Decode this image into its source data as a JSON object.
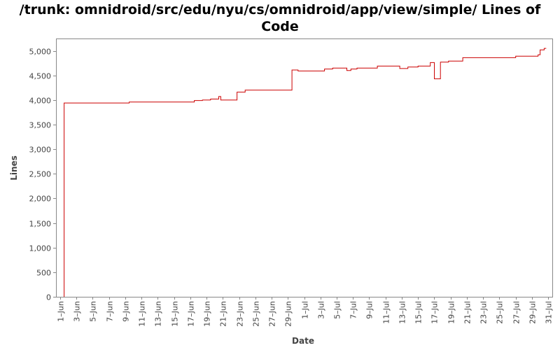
{
  "chart_data": {
    "type": "line",
    "title": "/trunk: omnidroid/src/edu/nyu/cs/omnidroid/app/view/simple/ Lines of Code",
    "xlabel": "Date",
    "ylabel": "Lines",
    "ylim": [
      0,
      5250
    ],
    "xlim": [
      "2008-05-31T12:00",
      "2008-07-31T12:00"
    ],
    "grid": false,
    "legend": "none",
    "line_color": "#cc0000",
    "y_ticks": [
      {
        "value": 0,
        "label": "0"
      },
      {
        "value": 500,
        "label": "500"
      },
      {
        "value": 1000,
        "label": "1,000"
      },
      {
        "value": 1500,
        "label": "1,500"
      },
      {
        "value": 2000,
        "label": "2,000"
      },
      {
        "value": 2500,
        "label": "2,500"
      },
      {
        "value": 3000,
        "label": "3,000"
      },
      {
        "value": 3500,
        "label": "3,500"
      },
      {
        "value": 4000,
        "label": "4,000"
      },
      {
        "value": 4500,
        "label": "4,500"
      },
      {
        "value": 5000,
        "label": "5,000"
      }
    ],
    "x_ticks": [
      {
        "date": "2008-06-01",
        "label": "1–Jun"
      },
      {
        "date": "2008-06-03",
        "label": "3–Jun"
      },
      {
        "date": "2008-06-05",
        "label": "5–Jun"
      },
      {
        "date": "2008-06-07",
        "label": "7–Jun"
      },
      {
        "date": "2008-06-09",
        "label": "9–Jun"
      },
      {
        "date": "2008-06-11",
        "label": "11–Jun"
      },
      {
        "date": "2008-06-13",
        "label": "13–Jun"
      },
      {
        "date": "2008-06-15",
        "label": "15–Jun"
      },
      {
        "date": "2008-06-17",
        "label": "17–Jun"
      },
      {
        "date": "2008-06-19",
        "label": "19–Jun"
      },
      {
        "date": "2008-06-21",
        "label": "21–Jun"
      },
      {
        "date": "2008-06-23",
        "label": "23–Jun"
      },
      {
        "date": "2008-06-25",
        "label": "25–Jun"
      },
      {
        "date": "2008-06-27",
        "label": "27–Jun"
      },
      {
        "date": "2008-06-29",
        "label": "29–Jun"
      },
      {
        "date": "2008-07-01",
        "label": "1–Jul"
      },
      {
        "date": "2008-07-03",
        "label": "3–Jul"
      },
      {
        "date": "2008-07-05",
        "label": "5–Jul"
      },
      {
        "date": "2008-07-07",
        "label": "7–Jul"
      },
      {
        "date": "2008-07-09",
        "label": "9–Jul"
      },
      {
        "date": "2008-07-11",
        "label": "11–Jul"
      },
      {
        "date": "2008-07-13",
        "label": "13–Jul"
      },
      {
        "date": "2008-07-15",
        "label": "15–Jul"
      },
      {
        "date": "2008-07-17",
        "label": "17–Jul"
      },
      {
        "date": "2008-07-19",
        "label": "19–Jul"
      },
      {
        "date": "2008-07-21",
        "label": "21–Jul"
      },
      {
        "date": "2008-07-23",
        "label": "23–Jul"
      },
      {
        "date": "2008-07-25",
        "label": "25–Jul"
      },
      {
        "date": "2008-07-27",
        "label": "27–Jul"
      },
      {
        "date": "2008-07-29",
        "label": "29–Jul"
      },
      {
        "date": "2008-07-31",
        "label": "31–Jul"
      }
    ],
    "series": [
      {
        "points": [
          {
            "x": "2008-06-01T12:00",
            "y": 0
          },
          {
            "x": "2008-06-01T12:00",
            "y": 3940
          },
          {
            "x": "2008-06-09T12:00",
            "y": 3960
          },
          {
            "x": "2008-06-17T12:00",
            "y": 3990
          },
          {
            "x": "2008-06-18T12:00",
            "y": 4000
          },
          {
            "x": "2008-06-19T12:00",
            "y": 4020
          },
          {
            "x": "2008-06-20T12:00",
            "y": 4070
          },
          {
            "x": "2008-06-20T18:00",
            "y": 4000
          },
          {
            "x": "2008-06-22T18:00",
            "y": 4160
          },
          {
            "x": "2008-06-23T18:00",
            "y": 4200
          },
          {
            "x": "2008-06-29T12:00",
            "y": 4610
          },
          {
            "x": "2008-06-30T06:00",
            "y": 4590
          },
          {
            "x": "2008-07-03T12:00",
            "y": 4630
          },
          {
            "x": "2008-07-04T12:00",
            "y": 4650
          },
          {
            "x": "2008-07-06T06:00",
            "y": 4600
          },
          {
            "x": "2008-07-06T18:00",
            "y": 4630
          },
          {
            "x": "2008-07-07T12:00",
            "y": 4650
          },
          {
            "x": "2008-07-10T00:00",
            "y": 4690
          },
          {
            "x": "2008-07-12T18:00",
            "y": 4640
          },
          {
            "x": "2008-07-13T18:00",
            "y": 4670
          },
          {
            "x": "2008-07-15T00:00",
            "y": 4690
          },
          {
            "x": "2008-07-16T12:00",
            "y": 4760
          },
          {
            "x": "2008-07-17T00:00",
            "y": 4430
          },
          {
            "x": "2008-07-17T18:00",
            "y": 4770
          },
          {
            "x": "2008-07-18T18:00",
            "y": 4790
          },
          {
            "x": "2008-07-20T12:00",
            "y": 4860
          },
          {
            "x": "2008-07-27T00:00",
            "y": 4890
          },
          {
            "x": "2008-07-29T18:00",
            "y": 4920
          },
          {
            "x": "2008-07-30T00:00",
            "y": 5020
          },
          {
            "x": "2008-07-30T12:00",
            "y": 5050
          },
          {
            "x": "2008-07-30T18:00",
            "y": 5050
          }
        ]
      }
    ]
  }
}
